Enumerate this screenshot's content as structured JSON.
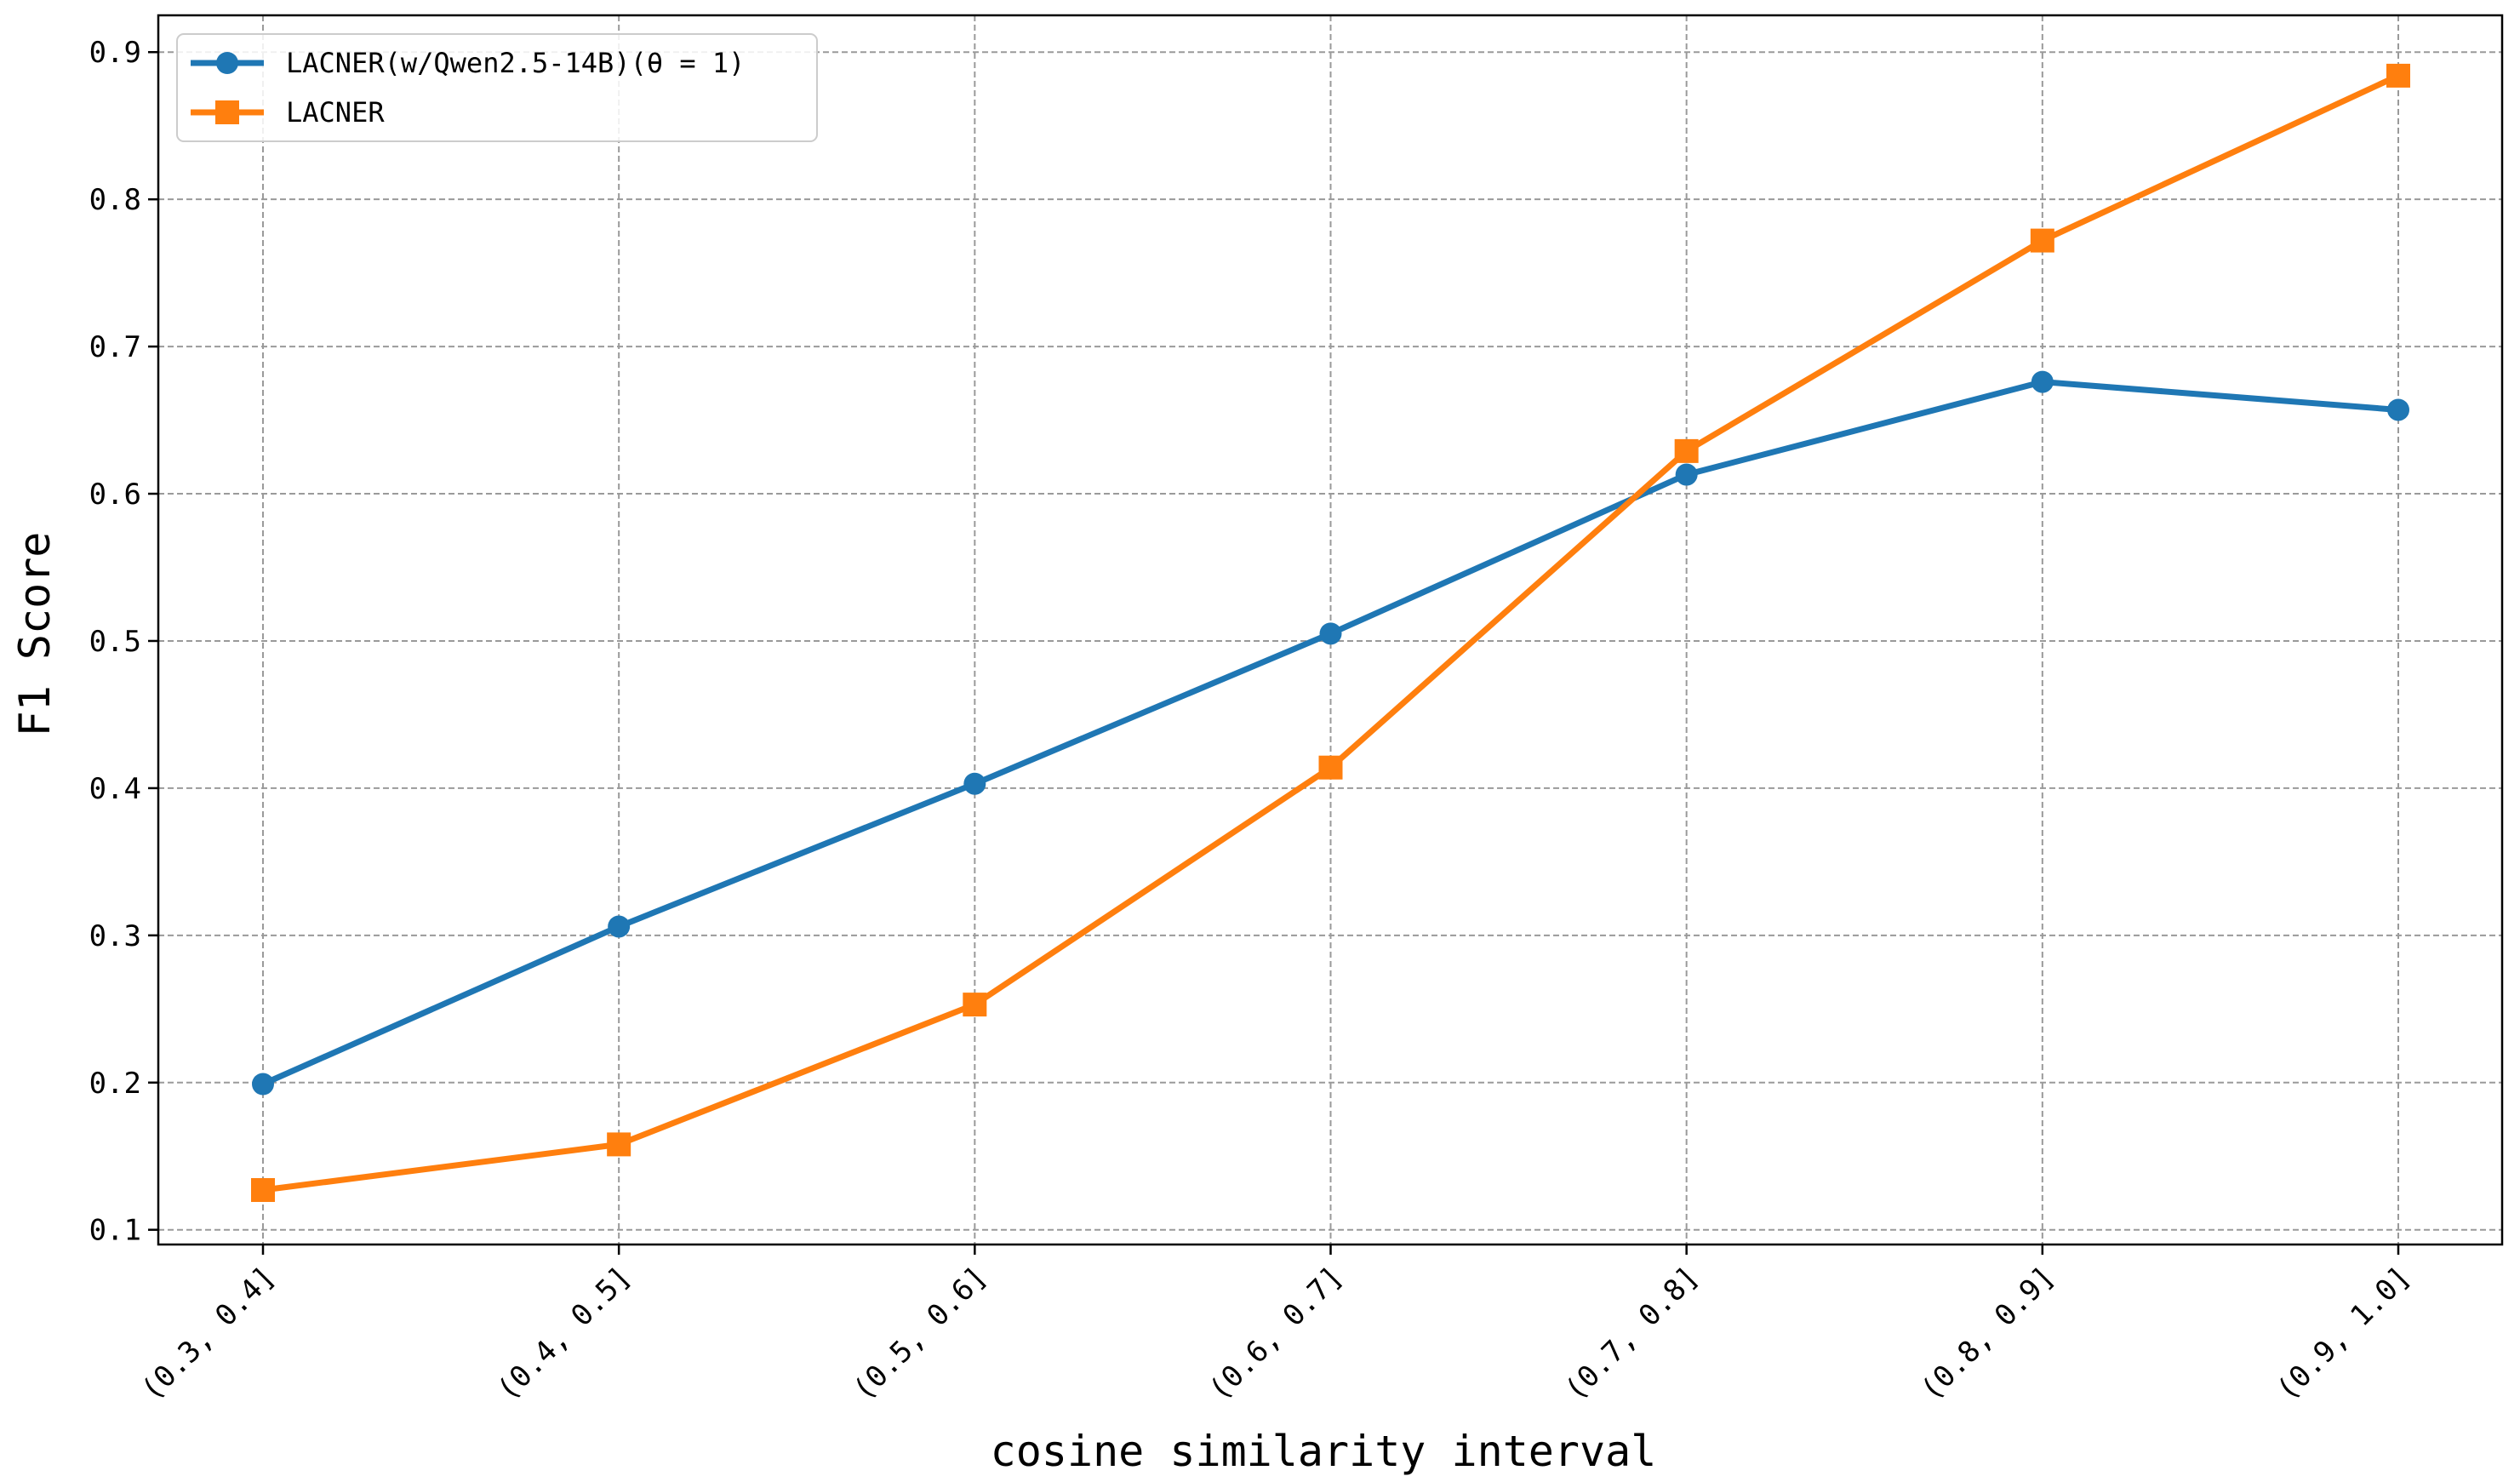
{
  "chart_data": {
    "type": "line",
    "categories": [
      "(0.3, 0.4]",
      "(0.4, 0.5]",
      "(0.5, 0.6]",
      "(0.6, 0.7]",
      "(0.7, 0.8]",
      "(0.8, 0.9]",
      "(0.9, 1.0]"
    ],
    "series": [
      {
        "name": "LACNER(w/Qwen2.5-14B)(θ = 1)",
        "values": [
          0.199,
          0.306,
          0.403,
          0.505,
          0.613,
          0.676,
          0.657
        ],
        "color": "#1f77b4",
        "marker": "circle"
      },
      {
        "name": "LACNER",
        "values": [
          0.127,
          0.158,
          0.253,
          0.414,
          0.629,
          0.772,
          0.884
        ],
        "color": "#ff7f0e",
        "marker": "square"
      }
    ],
    "xlabel": "cosine similarity interval",
    "ylabel": "F1 Score",
    "ylim": [
      0.09,
      0.925
    ],
    "yticks": [
      0.1,
      0.2,
      0.3,
      0.4,
      0.5,
      0.6,
      0.7,
      0.8,
      0.9
    ],
    "grid": true,
    "legend": "top-left"
  }
}
